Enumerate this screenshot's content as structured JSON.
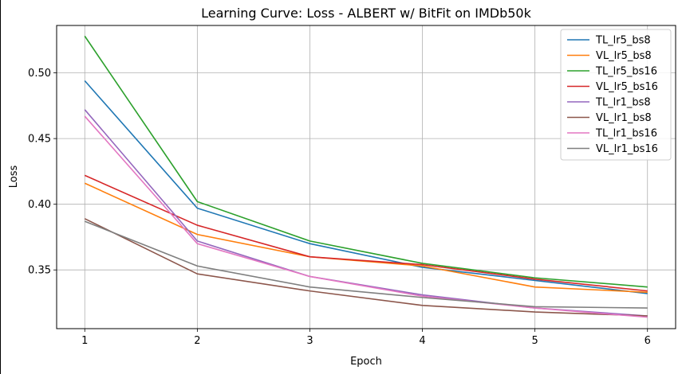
{
  "chart_data": {
    "type": "line",
    "title": "Learning Curve: Loss - ALBERT w/ BitFit on IMDb50k",
    "xlabel": "Epoch",
    "ylabel": "Loss",
    "x": [
      1,
      2,
      3,
      4,
      5,
      6
    ],
    "xlim": [
      0.75,
      6.25
    ],
    "ylim": [
      0.3053,
      0.5361
    ],
    "xticks": [
      "1",
      "2",
      "3",
      "4",
      "5",
      "6"
    ],
    "yticks": [
      "0.35",
      "0.40",
      "0.45",
      "0.50"
    ],
    "grid": true,
    "legend_position": "top-right",
    "series": [
      {
        "name": "TL_lr5_bs8",
        "color": "#1f77b4",
        "values": [
          0.494,
          0.397,
          0.37,
          0.352,
          0.342,
          0.332
        ]
      },
      {
        "name": "VL_lr5_bs8",
        "color": "#ff7f0e",
        "values": [
          0.416,
          0.377,
          0.36,
          0.353,
          0.337,
          0.333
        ]
      },
      {
        "name": "TL_lr5_bs16",
        "color": "#2ca02c",
        "values": [
          0.528,
          0.402,
          0.372,
          0.355,
          0.344,
          0.337
        ]
      },
      {
        "name": "VL_lr5_bs16",
        "color": "#d62728",
        "values": [
          0.422,
          0.384,
          0.36,
          0.354,
          0.343,
          0.334
        ]
      },
      {
        "name": "TL_lr1_bs8",
        "color": "#9467bd",
        "values": [
          0.472,
          0.372,
          0.345,
          0.331,
          0.321,
          0.315
        ]
      },
      {
        "name": "VL_lr1_bs8",
        "color": "#8c564b",
        "values": [
          0.389,
          0.347,
          0.334,
          0.323,
          0.318,
          0.315
        ]
      },
      {
        "name": "TL_lr1_bs16",
        "color": "#e377c2",
        "values": [
          0.467,
          0.37,
          0.345,
          0.33,
          0.321,
          0.314
        ]
      },
      {
        "name": "VL_lr1_bs16",
        "color": "#7f7f7f",
        "values": [
          0.387,
          0.353,
          0.337,
          0.329,
          0.322,
          0.321
        ]
      }
    ]
  }
}
